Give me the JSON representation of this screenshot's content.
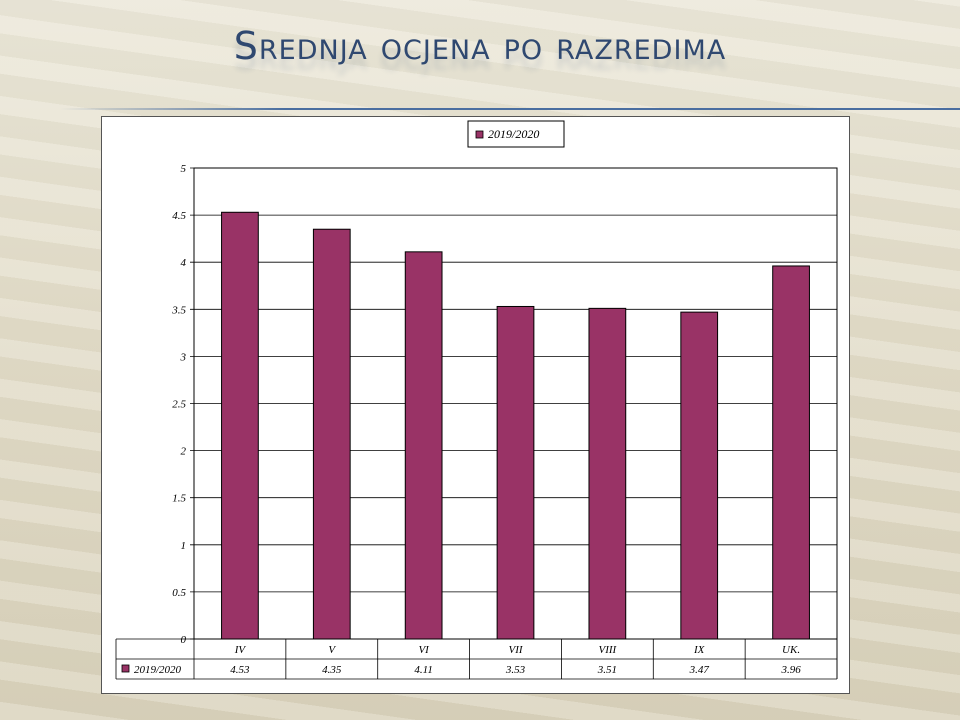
{
  "slide": {
    "title": "Srednja ocjena po razredima"
  },
  "chart_data": {
    "type": "bar",
    "categories": [
      "IV",
      "V",
      "VI",
      "VII",
      "VIII",
      "IX",
      "UK."
    ],
    "series": [
      {
        "name": "2019/2020",
        "values": [
          4.53,
          4.35,
          4.11,
          3.53,
          3.51,
          3.47,
          3.96
        ]
      }
    ],
    "value_labels": [
      "4.53",
      "4.35",
      "4.11",
      "3.53",
      "3.51",
      "3.47",
      "3.96"
    ],
    "y_ticks": [
      "0",
      "0.5",
      "1",
      "1.5",
      "2",
      "2.5",
      "3",
      "3.5",
      "4",
      "4.5",
      "5"
    ],
    "ylim": [
      0,
      5
    ],
    "grid": true,
    "legend_position": "top-center",
    "data_table": true,
    "bar_color": "#993366"
  }
}
